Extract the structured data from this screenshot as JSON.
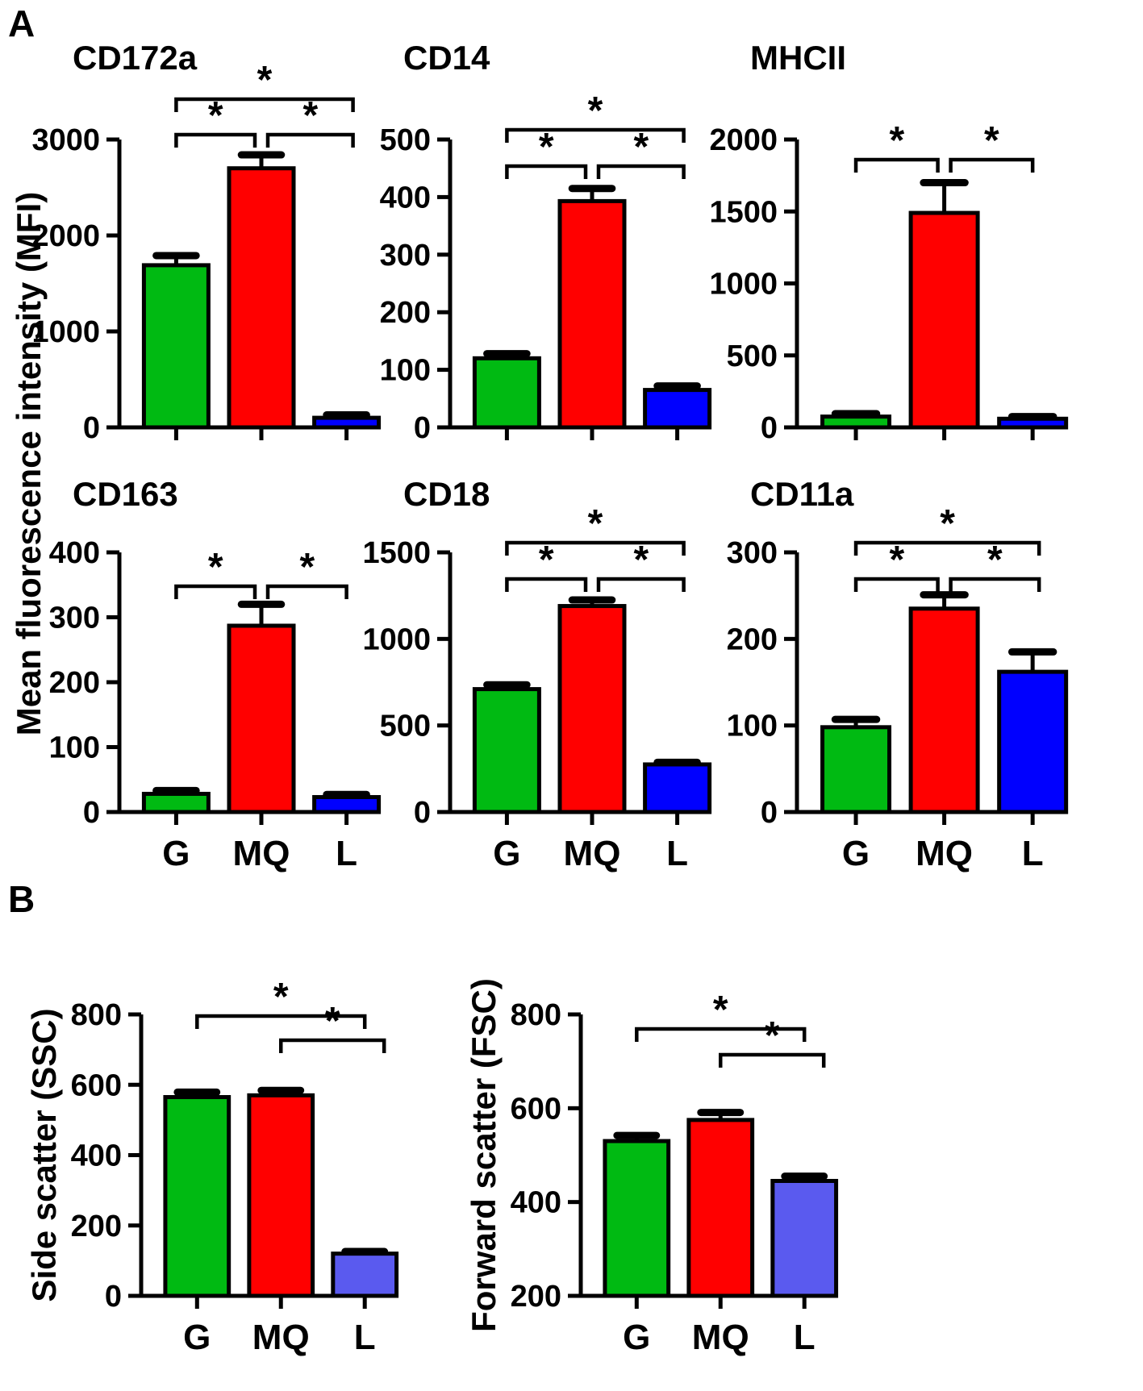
{
  "figure": {
    "panel_a_label": "A",
    "panel_b_label": "B",
    "panel_a_ylabel": "Mean fluorescence intensity (MFI)",
    "categories": [
      "G",
      "MQ",
      "L"
    ],
    "sig_symbol": "*"
  },
  "colors": {
    "bar_green": "#00ba12",
    "bar_red": "#ff0000",
    "bar_blue_panel_a": "#0000ff",
    "bar_blue_panel_b": "#5a5aef",
    "axis_black": "#000000"
  },
  "chart_data": [
    {
      "type": "bar",
      "id": "cd172a",
      "panel": "A",
      "title": "CD172a",
      "categories": [
        "G",
        "MQ",
        "L"
      ],
      "values": [
        1690,
        2700,
        100
      ],
      "errors": [
        100,
        140,
        30
      ],
      "ylim": [
        0,
        3000
      ],
      "yticks": [
        0,
        1000,
        2000,
        3000
      ],
      "show_xlabels": false,
      "grid": false,
      "bar_colors": [
        "bar_green",
        "bar_red",
        "bar_blue_panel_a"
      ],
      "significance": [
        {
          "groups": [
            "G",
            "L"
          ],
          "label": "*",
          "level": 1,
          "ox1": 0,
          "ox2": 8
        },
        {
          "groups": [
            "G",
            "MQ"
          ],
          "label": "*",
          "level": 0,
          "ox1": 0,
          "ox2": -8
        },
        {
          "groups": [
            "MQ",
            "L"
          ],
          "label": "*",
          "level": 0,
          "ox1": 8,
          "ox2": 8
        }
      ]
    },
    {
      "type": "bar",
      "id": "cd14",
      "panel": "A",
      "title": "CD14",
      "categories": [
        "G",
        "MQ",
        "L"
      ],
      "values": [
        120,
        393,
        65
      ],
      "errors": [
        8,
        22,
        7
      ],
      "ylim": [
        0,
        500
      ],
      "yticks": [
        0,
        100,
        200,
        300,
        400,
        500
      ],
      "show_xlabels": false,
      "grid": false,
      "bar_colors": [
        "bar_green",
        "bar_red",
        "bar_blue_panel_a"
      ],
      "significance": [
        {
          "groups": [
            "G",
            "L"
          ],
          "label": "*",
          "level": 1,
          "ox1": 0,
          "ox2": 8
        },
        {
          "groups": [
            "G",
            "MQ"
          ],
          "label": "*",
          "level": 0,
          "ox1": 0,
          "ox2": -8
        },
        {
          "groups": [
            "MQ",
            "L"
          ],
          "label": "*",
          "level": 0,
          "ox1": 8,
          "ox2": 8
        }
      ]
    },
    {
      "type": "bar",
      "id": "mhcii",
      "panel": "A",
      "title": "MHCII",
      "categories": [
        "G",
        "MQ",
        "L"
      ],
      "values": [
        75,
        1490,
        60
      ],
      "errors": [
        20,
        210,
        15
      ],
      "ylim": [
        0,
        2000
      ],
      "yticks": [
        0,
        500,
        1000,
        1500,
        2000
      ],
      "show_xlabels": false,
      "grid": false,
      "bar_colors": [
        "bar_green",
        "bar_red",
        "bar_blue_panel_a"
      ],
      "significance": [
        {
          "groups": [
            "G",
            "MQ"
          ],
          "label": "*",
          "level": 0,
          "ox1": 0,
          "ox2": -8
        },
        {
          "groups": [
            "MQ",
            "L"
          ],
          "label": "*",
          "level": 0,
          "ox1": 8,
          "ox2": 0
        }
      ]
    },
    {
      "type": "bar",
      "id": "cd163",
      "panel": "A",
      "title": "CD163",
      "categories": [
        "G",
        "MQ",
        "L"
      ],
      "values": [
        28,
        287,
        23
      ],
      "errors": [
        5,
        33,
        4
      ],
      "ylim": [
        0,
        400
      ],
      "yticks": [
        0,
        100,
        200,
        300,
        400
      ],
      "show_xlabels": true,
      "grid": false,
      "bar_colors": [
        "bar_green",
        "bar_red",
        "bar_blue_panel_a"
      ],
      "significance": [
        {
          "groups": [
            "G",
            "MQ"
          ],
          "label": "*",
          "level": 0,
          "ox1": 0,
          "ox2": -8
        },
        {
          "groups": [
            "MQ",
            "L"
          ],
          "label": "*",
          "level": 0,
          "ox1": 8,
          "ox2": 0
        }
      ]
    },
    {
      "type": "bar",
      "id": "cd18",
      "panel": "A",
      "title": "CD18",
      "categories": [
        "G",
        "MQ",
        "L"
      ],
      "values": [
        710,
        1190,
        275
      ],
      "errors": [
        25,
        35,
        12
      ],
      "ylim": [
        0,
        1500
      ],
      "yticks": [
        0,
        500,
        1000,
        1500
      ],
      "show_xlabels": true,
      "grid": false,
      "bar_colors": [
        "bar_green",
        "bar_red",
        "bar_blue_panel_a"
      ],
      "significance": [
        {
          "groups": [
            "G",
            "L"
          ],
          "label": "*",
          "level": 1,
          "ox1": 0,
          "ox2": 8
        },
        {
          "groups": [
            "G",
            "MQ"
          ],
          "label": "*",
          "level": 0,
          "ox1": 0,
          "ox2": -8
        },
        {
          "groups": [
            "MQ",
            "L"
          ],
          "label": "*",
          "level": 0,
          "ox1": 8,
          "ox2": 8
        }
      ]
    },
    {
      "type": "bar",
      "id": "cd11a",
      "panel": "A",
      "title": "CD11a",
      "categories": [
        "G",
        "MQ",
        "L"
      ],
      "values": [
        98,
        235,
        162
      ],
      "errors": [
        9,
        16,
        23
      ],
      "ylim": [
        0,
        300
      ],
      "yticks": [
        0,
        100,
        200,
        300
      ],
      "show_xlabels": true,
      "grid": false,
      "bar_colors": [
        "bar_green",
        "bar_red",
        "bar_blue_panel_a"
      ],
      "significance": [
        {
          "groups": [
            "G",
            "L"
          ],
          "label": "*",
          "level": 1,
          "ox1": 0,
          "ox2": 8
        },
        {
          "groups": [
            "G",
            "MQ"
          ],
          "label": "*",
          "level": 0,
          "ox1": 0,
          "ox2": -8
        },
        {
          "groups": [
            "MQ",
            "L"
          ],
          "label": "*",
          "level": 0,
          "ox1": 8,
          "ox2": 8
        }
      ]
    },
    {
      "type": "bar",
      "id": "ssc",
      "panel": "B",
      "title": "",
      "ylabel": "Side scatter (SSC)",
      "categories": [
        "G",
        "MQ",
        "L"
      ],
      "values": [
        565,
        570,
        120
      ],
      "errors": [
        14,
        14,
        6
      ],
      "ylim": [
        0,
        800
      ],
      "yticks": [
        0,
        200,
        400,
        600,
        800
      ],
      "show_xlabels": true,
      "grid": false,
      "bar_colors": [
        "bar_green",
        "bar_red",
        "bar_blue_panel_b"
      ],
      "significance": [
        {
          "groups": [
            "G",
            "L"
          ],
          "label": "*",
          "level": 1,
          "ox1": 0,
          "ox2": 0
        },
        {
          "groups": [
            "MQ",
            "L"
          ],
          "label": "*",
          "level": 0,
          "ox1": 0,
          "ox2": 24
        }
      ]
    },
    {
      "type": "bar",
      "id": "fsc",
      "panel": "B",
      "title": "",
      "ylabel": "Forward scatter (FSC)",
      "categories": [
        "G",
        "MQ",
        "L"
      ],
      "values": [
        530,
        575,
        445
      ],
      "errors": [
        12,
        16,
        10
      ],
      "ylim": [
        200,
        800
      ],
      "yticks": [
        200,
        400,
        600,
        800
      ],
      "show_xlabels": true,
      "grid": false,
      "bar_colors": [
        "bar_green",
        "bar_red",
        "bar_blue_panel_b"
      ],
      "significance": [
        {
          "groups": [
            "G",
            "L"
          ],
          "label": "*",
          "level": 1,
          "ox1": 0,
          "ox2": 0
        },
        {
          "groups": [
            "MQ",
            "L"
          ],
          "label": "*",
          "level": 0,
          "ox1": 0,
          "ox2": 24
        }
      ]
    }
  ]
}
